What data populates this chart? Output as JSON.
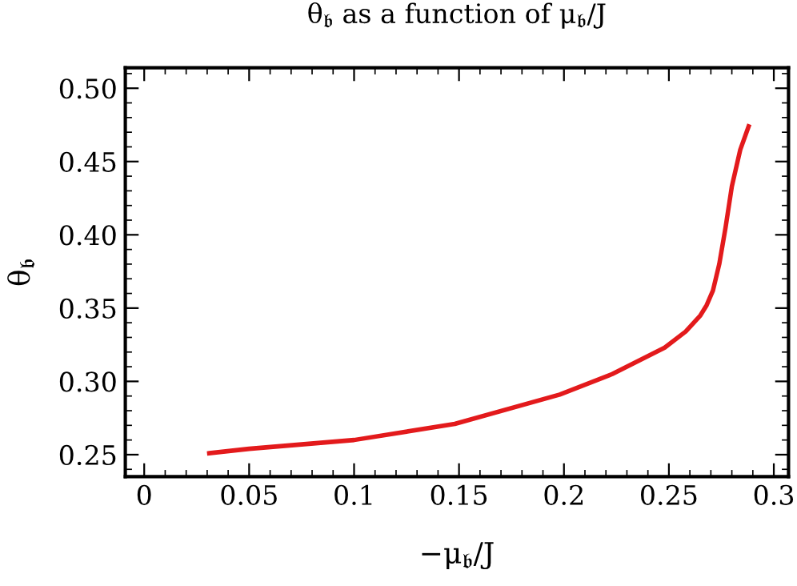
{
  "chart_data": {
    "type": "line",
    "title": "θ$_{𝔟}$ as a function of μ$_{𝔟}$/J",
    "xlabel": "−μ$_{𝔟}$/J",
    "ylabel": "θ$_{𝔟}$",
    "x": [
      0.031,
      0.05,
      0.1,
      0.148,
      0.198,
      0.223,
      0.248,
      0.258,
      0.265,
      0.268,
      0.271,
      0.274,
      0.277,
      0.28,
      0.284,
      0.288
    ],
    "series": [
      {
        "color": "#e31a1c",
        "values": [
          0.251,
          0.254,
          0.26,
          0.271,
          0.291,
          0.305,
          0.323,
          0.334,
          0.345,
          0.352,
          0.362,
          0.38,
          0.405,
          0.433,
          0.458,
          0.474
        ]
      }
    ],
    "xlim": [
      -0.009,
      0.307
    ],
    "ylim": [
      0.235,
      0.514
    ],
    "xticks": [
      {
        "value": 0,
        "label": "0"
      },
      0.05,
      0.1,
      0.15,
      0.2,
      0.25,
      0.3
    ],
    "yticks": [
      {
        "value": 0.25,
        "label": "0.25"
      },
      {
        "value": 0.3,
        "label": "0.30"
      },
      {
        "value": 0.35,
        "label": "0.35"
      },
      {
        "value": 0.4,
        "label": "0.40"
      },
      {
        "value": 0.45,
        "label": "0.45"
      },
      {
        "value": 0.5,
        "label": "0.50"
      }
    ],
    "grid": false,
    "marker": "none",
    "line_style": "solid"
  }
}
